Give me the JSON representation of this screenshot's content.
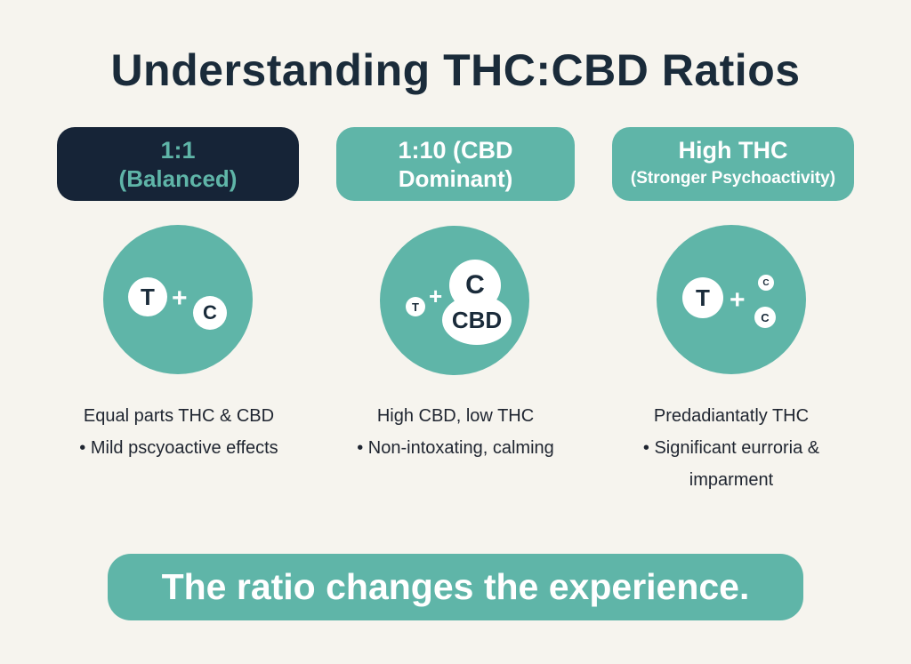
{
  "title": "Understanding THC:CBD Ratios",
  "columns": [
    {
      "header_line1": "1:1",
      "header_line2": "(Balanced)",
      "molecules": {
        "t": "T",
        "c": "C"
      },
      "desc_line1": "Equal parts THC & CBD",
      "desc_line2": "• Mild pscyoactive effects"
    },
    {
      "header_line1": "1:10 (CBD",
      "header_line2": "Dominant)",
      "molecules": {
        "t": "T",
        "c": "C",
        "cbd": "CBD"
      },
      "desc_line1": "High CBD, low THC",
      "desc_line2": "• Non-intoxating, calming"
    },
    {
      "header_line1": "High THC",
      "header_line2": "(Stronger Psychoactivity)",
      "molecules": {
        "t": "T",
        "c1": "C",
        "c2": "C"
      },
      "desc_line1": "Predadiantatly THC",
      "desc_line2": "• Significant eurroria &",
      "desc_line3": "imparment"
    }
  ],
  "plus": "+",
  "banner": "The ratio changes the experience.",
  "colors": {
    "background": "#f6f4ee",
    "teal": "#5fb5a8",
    "navy": "#162437",
    "text": "#1a2b3a"
  }
}
